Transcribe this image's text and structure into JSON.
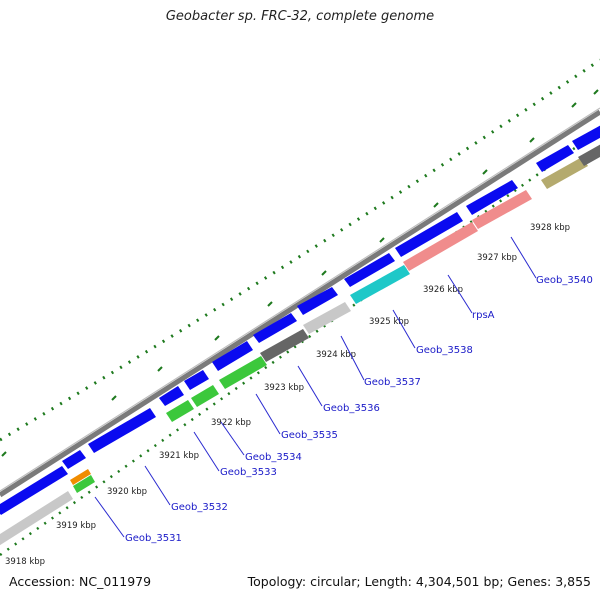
{
  "title": "Geobacter sp. FRC-32, complete genome",
  "accession": "Accession: NC_011979",
  "topology": "Topology: circular; Length: 4,304,501 bp; Genes: 3,855",
  "kbp_labels": [
    "3918 kbp",
    "3919 kbp",
    "3920 kbp",
    "3921 kbp",
    "3922 kbp",
    "3923 kbp",
    "3924 kbp",
    "3925 kbp",
    "3926 kbp",
    "3927 kbp",
    "3928 kbp"
  ],
  "gene_labels": [
    "Geob_3531",
    "Geob_3532",
    "Geob_3533",
    "Geob_3534",
    "Geob_3535",
    "Geob_3536",
    "Geob_3537",
    "Geob_3538",
    "rpsA",
    "Geob_3540"
  ],
  "colors": {
    "cds": "#0a0af0",
    "backbone": "#8c8c8c",
    "gc_skew": "#1e7a1e",
    "label_text": "#1a1ac8",
    "light_gray": "#c8c8c8",
    "dark_gray": "#666666",
    "green": "#3cc83c",
    "orange": "#f08c00",
    "cyan": "#1ec8c8",
    "pink": "#f08c8c",
    "olive": "#b4aa6e"
  }
}
